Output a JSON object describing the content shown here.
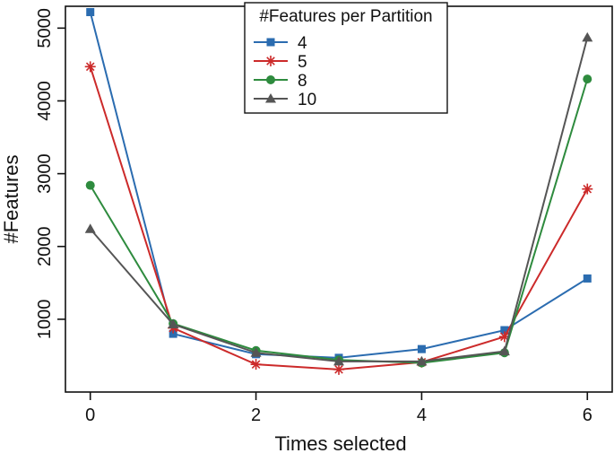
{
  "chart_data": {
    "type": "line",
    "xlabel": "Times selected",
    "ylabel": "#Features",
    "x": [
      0,
      1,
      2,
      3,
      4,
      5,
      6
    ],
    "xlim": [
      -0.3,
      6.3
    ],
    "ylim": [
      0,
      5300
    ],
    "xticks": [
      "0",
      "2",
      "4",
      "6"
    ],
    "yticks": [
      "1000",
      "2000",
      "3000",
      "4000",
      "5000"
    ],
    "grid": false,
    "legend": {
      "title": "#Features per Partition",
      "position": "top-center"
    },
    "series": [
      {
        "name": "4",
        "color": "#2b6cb0",
        "marker": "square",
        "values": [
          5220,
          800,
          520,
          470,
          590,
          850,
          1560
        ]
      },
      {
        "name": "5",
        "color": "#cc2a2a",
        "marker": "asterisk",
        "values": [
          4470,
          880,
          380,
          310,
          410,
          760,
          2790
        ]
      },
      {
        "name": "8",
        "color": "#2e8b3e",
        "marker": "circle",
        "values": [
          2840,
          940,
          570,
          440,
          400,
          540,
          4300
        ]
      },
      {
        "name": "10",
        "color": "#555555",
        "marker": "triangle",
        "values": [
          2240,
          930,
          540,
          420,
          420,
          560,
          4870
        ]
      }
    ]
  }
}
